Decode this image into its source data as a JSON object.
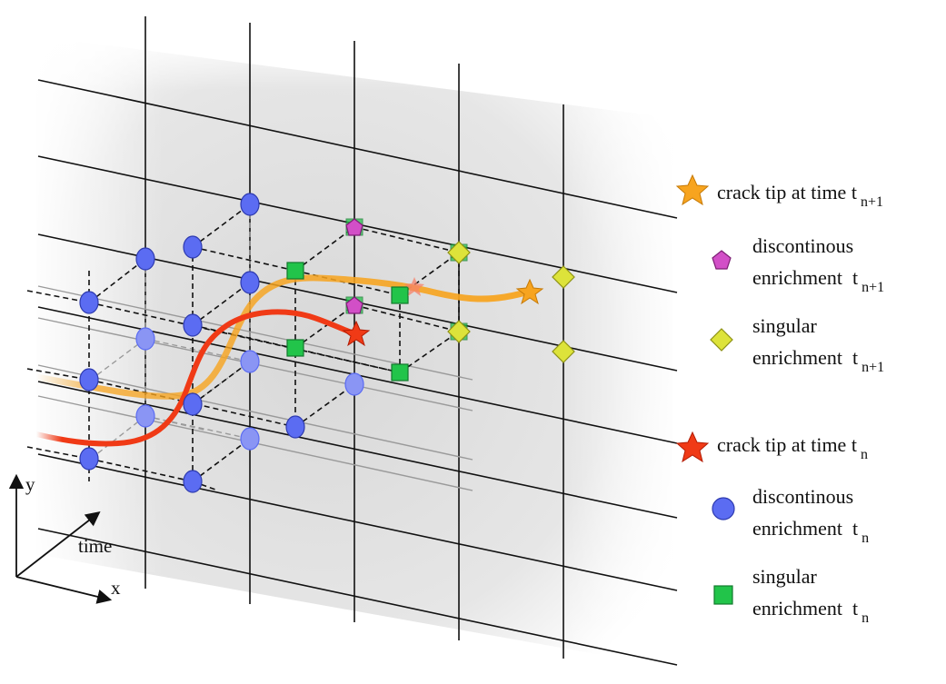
{
  "axes": {
    "y_label": "y",
    "time_label": "time",
    "x_label": "x"
  },
  "colors": {
    "discontinuous_tn": "#5b6cf2",
    "singular_tn": "#22c44a",
    "discontinuous_tn1": "#d24fc7",
    "singular_tn1": "#dde33a",
    "crack_tn": "#f03a16",
    "crack_tn1": "#f7a41f"
  },
  "legend": [
    {
      "icon": "orange-star-icon",
      "lines": [
        "crack tip at time t"
      ],
      "subscript": "n+1"
    },
    {
      "icon": "magenta-pentagon-icon",
      "lines": [
        "discontinous",
        "enrichment  t"
      ],
      "subscript": "n+1"
    },
    {
      "icon": "yellow-diamond-icon",
      "lines": [
        "singular",
        "enrichment  t"
      ],
      "subscript": "n+1"
    },
    {
      "icon": "red-star-icon",
      "lines": [
        "crack tip at time t"
      ],
      "subscript": "n"
    },
    {
      "icon": "blue-circle-icon",
      "lines": [
        "discontinous",
        "enrichment  t"
      ],
      "subscript": "n"
    },
    {
      "icon": "green-square-icon",
      "lines": [
        "singular",
        "enrichment  t"
      ],
      "subscript": "n"
    }
  ]
}
